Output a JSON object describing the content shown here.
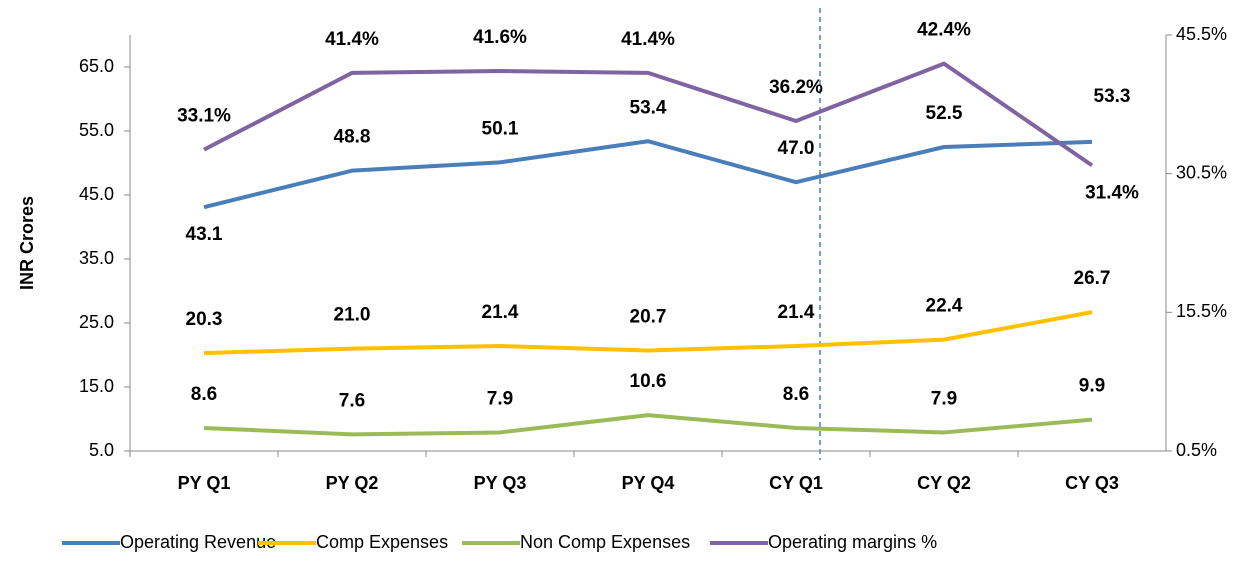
{
  "chart_data": {
    "type": "line",
    "y_label": "INR Crores",
    "categories": [
      "PY Q1",
      "PY Q2",
      "PY Q3",
      "PY Q4",
      "CY Q1",
      "CY Q2",
      "CY Q3"
    ],
    "series": [
      {
        "name": "Operating Revenue",
        "color": "#4a7ebb",
        "values": [
          43.1,
          48.8,
          50.1,
          53.4,
          47.0,
          52.5,
          53.3
        ],
        "value_labels": [
          "43.1",
          "48.8",
          "50.1",
          "53.4",
          "47.0",
          "52.5",
          "53.3"
        ]
      },
      {
        "name": "Comp Expenses",
        "color": "#ffc000",
        "values": [
          20.3,
          21.0,
          21.4,
          20.7,
          21.4,
          22.4,
          26.7
        ],
        "value_labels": [
          "20.3",
          "21.0",
          "21.4",
          "20.7",
          "21.4",
          "22.4",
          "26.7"
        ]
      },
      {
        "name": "Non Comp Expenses",
        "color": "#9bbb59",
        "values": [
          8.6,
          7.6,
          7.9,
          10.6,
          8.6,
          7.9,
          9.9
        ],
        "value_labels": [
          "8.6",
          "7.6",
          "7.9",
          "10.6",
          "8.6",
          "7.9",
          "9.9"
        ]
      },
      {
        "name": "Operating margins %",
        "color": "#8064a2",
        "axis": "y2",
        "values": [
          33.1,
          41.4,
          41.6,
          41.4,
          36.2,
          42.4,
          31.4
        ],
        "value_labels": [
          "33.1%",
          "41.4%",
          "41.6%",
          "41.4%",
          "36.2%",
          "42.4%",
          "31.4%"
        ]
      }
    ],
    "ylim": [
      5,
      70
    ],
    "yticks": [
      {
        "value": 5,
        "label": "5.0"
      },
      {
        "value": 15,
        "label": "15.0"
      },
      {
        "value": 25,
        "label": "25.0"
      },
      {
        "value": 35,
        "label": "35.0"
      },
      {
        "value": 45,
        "label": "45.0"
      },
      {
        "value": 55,
        "label": "55.0"
      },
      {
        "value": 65,
        "label": "65.0"
      }
    ],
    "y2lim": [
      0.5,
      45.5
    ],
    "y2ticks": [
      {
        "value": 0.5,
        "label": "0.5%"
      },
      {
        "value": 15.5,
        "label": "15.5%"
      },
      {
        "value": 30.5,
        "label": "30.5%"
      },
      {
        "value": 45.5,
        "label": "45.5%"
      }
    ],
    "legend": "bottom"
  }
}
